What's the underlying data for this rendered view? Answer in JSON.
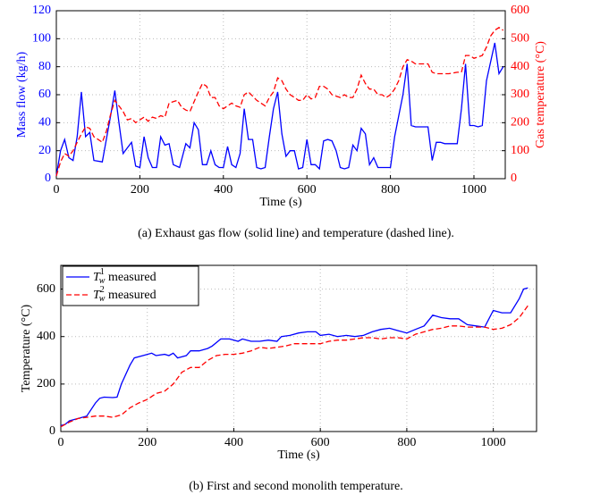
{
  "chart_data": [
    {
      "type": "line",
      "caption": "(a)  Exhaust gas flow (solid line) and temperature (dashed line).",
      "xlabel": "Time (s)",
      "ylabel": "Mass flow (kg/h)",
      "y2label": "Gas temperature (°C)",
      "xlim": [
        0,
        1075
      ],
      "xticks": [
        0,
        200,
        400,
        600,
        800,
        1000
      ],
      "ylim": [
        0,
        120
      ],
      "yticks": [
        0,
        20,
        40,
        60,
        80,
        100,
        120
      ],
      "y2lim": [
        0,
        600
      ],
      "y2ticks": [
        0,
        100,
        200,
        300,
        400,
        500,
        600
      ],
      "grid": true,
      "ycolor": "#0000ff",
      "y2color": "#ff0000",
      "series": [
        {
          "color": "#0000ff",
          "style": "solid",
          "x": [
            0,
            10,
            20,
            30,
            40,
            50,
            60,
            70,
            80,
            90,
            110,
            130,
            140,
            150,
            160,
            170,
            180,
            190,
            200,
            210,
            220,
            230,
            240,
            250,
            260,
            270,
            280,
            295,
            310,
            320,
            330,
            340,
            350,
            360,
            370,
            380,
            390,
            400,
            410,
            420,
            430,
            440,
            450,
            460,
            470,
            480,
            490,
            500,
            510,
            520,
            530,
            540,
            550,
            560,
            570,
            580,
            590,
            600,
            610,
            620,
            630,
            640,
            650,
            660,
            670,
            680,
            690,
            700,
            710,
            720,
            730,
            740,
            750,
            760,
            770,
            780,
            790,
            800,
            810,
            820,
            830,
            840,
            850,
            860,
            880,
            890,
            900,
            910,
            920,
            930,
            940,
            960,
            970,
            980,
            990,
            1000,
            1010,
            1020,
            1030,
            1050,
            1060,
            1070
          ],
          "values": [
            2,
            20,
            28,
            15,
            13,
            30,
            62,
            30,
            33,
            13,
            12,
            45,
            63,
            40,
            18,
            22,
            26,
            9,
            8,
            30,
            15,
            8,
            8,
            30,
            24,
            25,
            10,
            8,
            25,
            22,
            40,
            35,
            10,
            10,
            20,
            10,
            8,
            8,
            23,
            10,
            8,
            18,
            50,
            28,
            28,
            8,
            7,
            8,
            30,
            50,
            62,
            32,
            16,
            20,
            20,
            7,
            8,
            28,
            10,
            10,
            7,
            27,
            28,
            27,
            20,
            8,
            7,
            8,
            24,
            20,
            36,
            32,
            10,
            15,
            8,
            8,
            8,
            8,
            30,
            45,
            60,
            82,
            38,
            37,
            37,
            37,
            13,
            26,
            26,
            25,
            25,
            25,
            50,
            82,
            38,
            38,
            37,
            38,
            70,
            97,
            75,
            80
          ]
        },
        {
          "color": "#ff0000",
          "style": "dashed",
          "axis": "y2",
          "x": [
            0,
            10,
            20,
            30,
            40,
            50,
            60,
            70,
            80,
            90,
            100,
            110,
            120,
            130,
            140,
            150,
            160,
            170,
            180,
            190,
            200,
            210,
            220,
            230,
            240,
            250,
            260,
            270,
            280,
            290,
            300,
            310,
            320,
            330,
            340,
            350,
            360,
            370,
            380,
            390,
            400,
            410,
            420,
            430,
            440,
            450,
            460,
            470,
            480,
            490,
            500,
            510,
            520,
            530,
            540,
            550,
            560,
            570,
            580,
            590,
            600,
            610,
            620,
            630,
            640,
            650,
            660,
            670,
            680,
            690,
            700,
            710,
            720,
            730,
            740,
            750,
            760,
            770,
            780,
            790,
            800,
            810,
            820,
            830,
            840,
            850,
            860,
            880,
            890,
            900,
            910,
            920,
            940,
            960,
            970,
            980,
            990,
            1000,
            1020,
            1030,
            1040,
            1050,
            1060,
            1070
          ],
          "values": [
            10,
            60,
            90,
            80,
            100,
            130,
            160,
            185,
            180,
            150,
            140,
            130,
            170,
            230,
            280,
            260,
            240,
            210,
            215,
            200,
            210,
            220,
            205,
            220,
            215,
            225,
            220,
            270,
            275,
            280,
            255,
            245,
            240,
            275,
            310,
            340,
            330,
            290,
            290,
            260,
            250,
            260,
            270,
            260,
            255,
            300,
            310,
            295,
            280,
            270,
            260,
            290,
            310,
            360,
            350,
            320,
            300,
            290,
            280,
            280,
            300,
            285,
            290,
            330,
            330,
            320,
            300,
            295,
            290,
            300,
            290,
            290,
            320,
            370,
            340,
            320,
            320,
            300,
            300,
            290,
            300,
            320,
            350,
            400,
            425,
            420,
            410,
            410,
            410,
            380,
            375,
            375,
            375,
            380,
            380,
            440,
            440,
            430,
            440,
            470,
            510,
            530,
            540,
            530
          ]
        }
      ]
    },
    {
      "type": "line",
      "caption": "(b)  First and second monolith temperature.",
      "xlabel": "Time (s)",
      "ylabel": "Temperature (°C)",
      "xlim": [
        0,
        1100
      ],
      "xticks": [
        0,
        200,
        400,
        600,
        800,
        1000
      ],
      "ylim": [
        0,
        700
      ],
      "yticks": [
        0,
        200,
        400,
        600
      ],
      "grid": true,
      "legend": "upper left",
      "series": [
        {
          "name": "T_w^1 measured",
          "color": "#0000ff",
          "style": "solid",
          "x": [
            0,
            10,
            20,
            40,
            60,
            80,
            90,
            100,
            120,
            130,
            140,
            160,
            170,
            190,
            210,
            220,
            240,
            250,
            260,
            270,
            290,
            300,
            320,
            340,
            350,
            370,
            390,
            410,
            420,
            440,
            460,
            480,
            500,
            510,
            530,
            550,
            570,
            590,
            600,
            620,
            640,
            660,
            680,
            700,
            720,
            740,
            760,
            780,
            800,
            820,
            840,
            860,
            880,
            900,
            920,
            940,
            960,
            980,
            1000,
            1020,
            1040,
            1060,
            1070,
            1080
          ],
          "values": [
            25,
            30,
            45,
            55,
            65,
            120,
            140,
            145,
            143,
            145,
            200,
            280,
            310,
            320,
            330,
            320,
            325,
            320,
            330,
            310,
            320,
            340,
            340,
            350,
            360,
            390,
            390,
            380,
            390,
            380,
            380,
            385,
            380,
            400,
            405,
            415,
            420,
            420,
            405,
            410,
            400,
            405,
            400,
            405,
            420,
            430,
            435,
            425,
            415,
            430,
            445,
            490,
            480,
            475,
            475,
            450,
            445,
            440,
            510,
            500,
            500,
            560,
            600,
            605
          ]
        },
        {
          "name": "T_w^2 measured",
          "color": "#ff0000",
          "style": "dashed",
          "x": [
            0,
            20,
            40,
            60,
            80,
            100,
            120,
            140,
            160,
            180,
            200,
            220,
            240,
            260,
            280,
            300,
            320,
            340,
            360,
            380,
            400,
            420,
            440,
            460,
            480,
            500,
            520,
            540,
            560,
            600,
            620,
            640,
            660,
            680,
            700,
            720,
            740,
            760,
            780,
            800,
            820,
            840,
            860,
            880,
            900,
            920,
            940,
            960,
            980,
            1000,
            1020,
            1040,
            1060,
            1080
          ],
          "values": [
            20,
            40,
            55,
            60,
            65,
            65,
            60,
            70,
            100,
            120,
            135,
            160,
            170,
            200,
            250,
            270,
            270,
            300,
            320,
            325,
            325,
            330,
            340,
            355,
            350,
            355,
            360,
            370,
            370,
            370,
            380,
            385,
            385,
            390,
            395,
            395,
            390,
            395,
            395,
            390,
            410,
            420,
            430,
            435,
            445,
            445,
            440,
            440,
            440,
            430,
            435,
            450,
            480,
            530
          ]
        }
      ]
    }
  ]
}
